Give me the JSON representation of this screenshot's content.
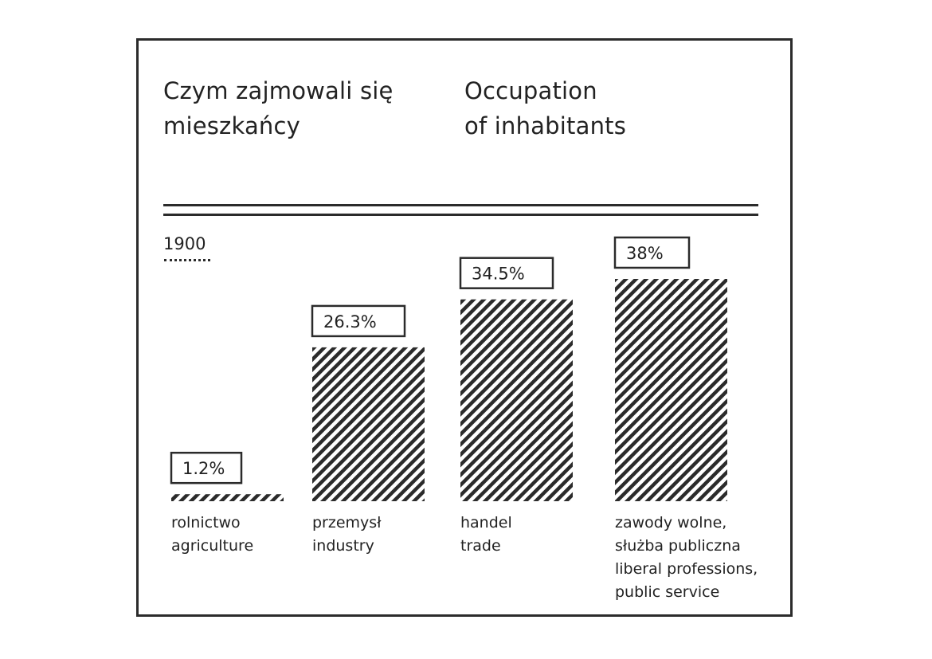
{
  "titles": {
    "pl": "Czym zajmowali się\nmieszkańcy",
    "en": "Occupation\nof inhabitants"
  },
  "year": "1900",
  "colors": {
    "ink": "#2b2b2b",
    "background": "#ffffff"
  },
  "chart_data": {
    "type": "bar",
    "title": "Czym zajmowali się mieszkańcy / Occupation of inhabitants",
    "series": [
      {
        "name": "1900",
        "values": [
          1.2,
          26.3,
          34.5,
          38
        ]
      }
    ],
    "categories": [
      "rolnictwo agriculture",
      "przemysł industry",
      "handel trade",
      "zawody wolne, służba publiczna liberal professions, public service"
    ],
    "category_labels": [
      [
        "rolnictwo",
        "agriculture"
      ],
      [
        "przemysł",
        "industry"
      ],
      [
        "handel",
        "trade"
      ],
      [
        "zawody wolne,",
        "służba publiczna",
        "liberal professions,",
        "public service"
      ]
    ],
    "value_labels": [
      "1.2%",
      "26.3%",
      "34.5%",
      "38%"
    ],
    "unit": "%",
    "ylim": [
      0,
      38
    ],
    "grid": false,
    "fill": "diagonal-hatch"
  }
}
